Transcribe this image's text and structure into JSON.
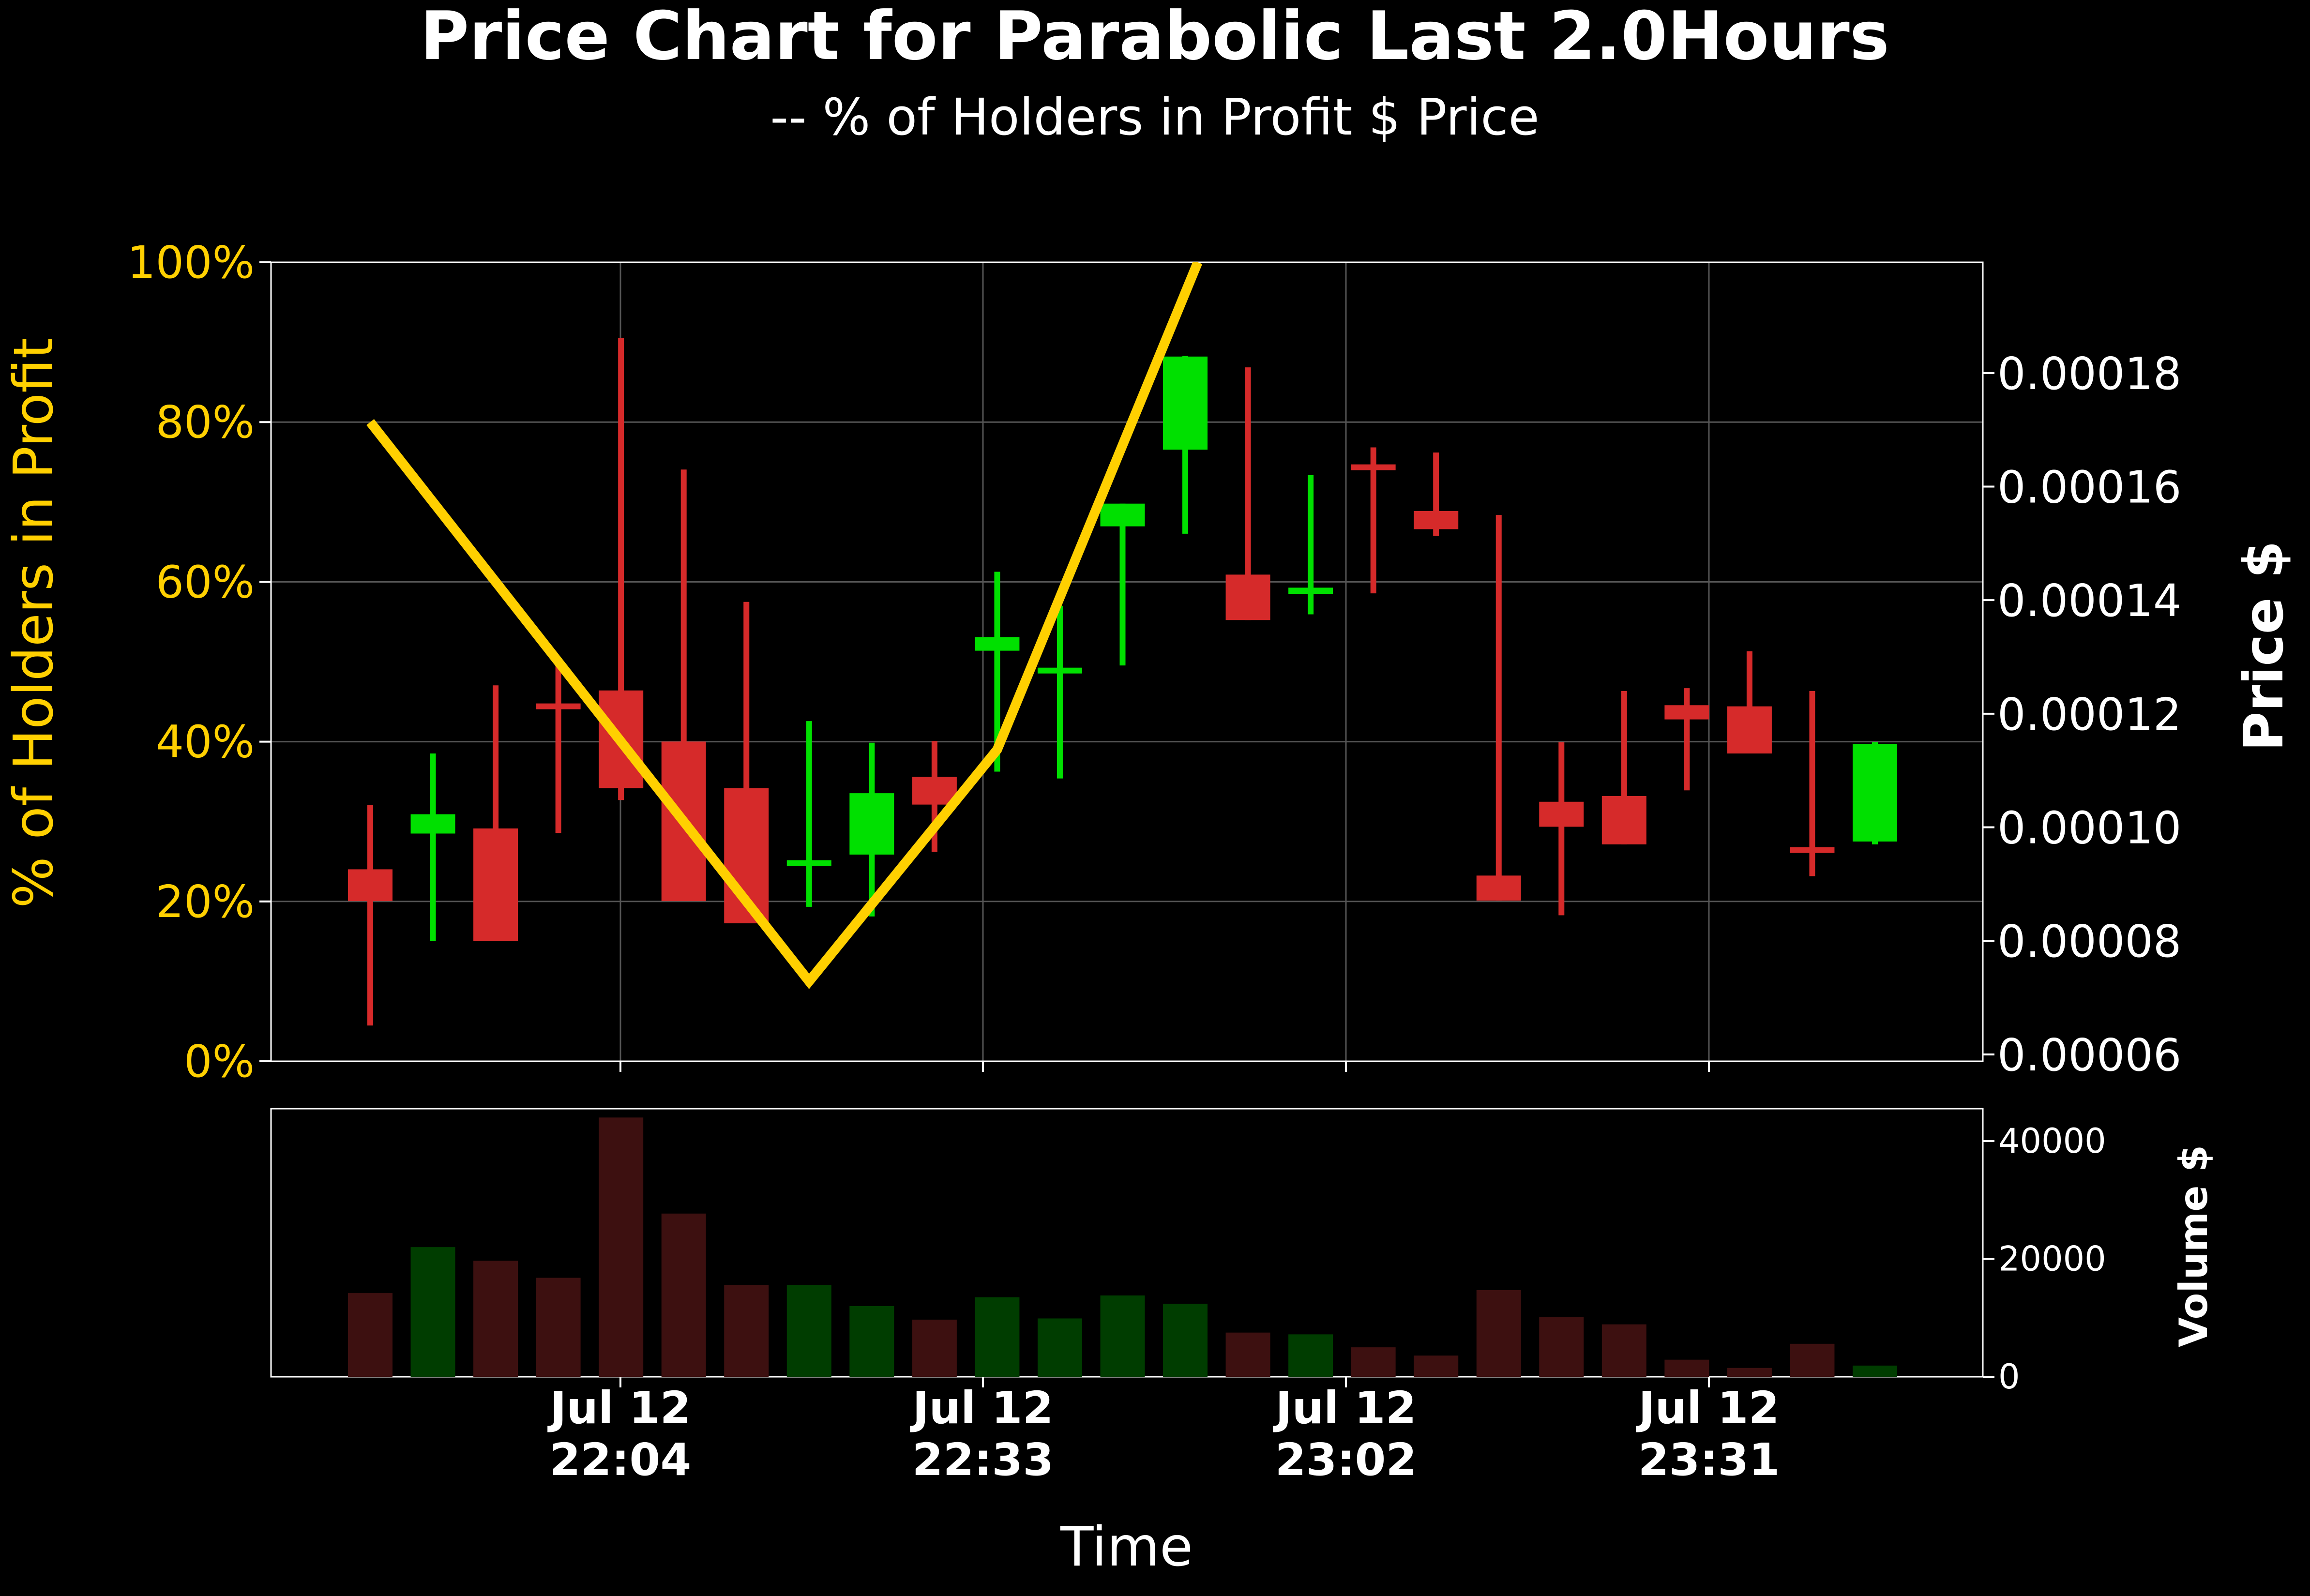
{
  "title": "Price Chart for Parabolic Last 2.0Hours",
  "subtitle": "-- % of Holders in Profit $ Price",
  "colors": {
    "background": "#000000",
    "up": "#00e000",
    "down": "#d62a2a",
    "profit_line": "#ffd000",
    "left_axis_text": "#ffd000",
    "text": "#ffffff",
    "grid": "#555555",
    "vol_up": "#003d00",
    "vol_down": "#3d1010"
  },
  "chart_data": [
    {
      "type": "candlestick",
      "panel": "price",
      "ylabel_left": "% of Holders in Profit",
      "ylabel_right": "Price $",
      "ylim_left": [
        0,
        100
      ],
      "ylim_right": [
        5.88e-05,
        0.0001995
      ],
      "yticks_left": [
        "0%",
        "20%",
        "40%",
        "60%",
        "80%",
        "100%"
      ],
      "yticks_right": [
        "0.00006",
        "0.00008",
        "0.00010",
        "0.00012",
        "0.00014",
        "0.00016",
        "0.00018"
      ],
      "grid": true,
      "candles": [
        {
          "o": 9.26e-05,
          "h": 0.0001039,
          "l": 6.51e-05,
          "c": 8.7e-05
        },
        {
          "o": 9.89e-05,
          "h": 0.000113,
          "l": 8e-05,
          "c": 0.0001023
        },
        {
          "o": 9.98e-05,
          "h": 0.000125,
          "l": 9.71e-05,
          "c": 8e-05
        },
        {
          "o": 0.0001213,
          "h": 0.0001287,
          "l": 9.9e-05,
          "c": 0.0001207
        },
        {
          "o": 0.0001241,
          "h": 0.0001862,
          "l": 0.0001048,
          "c": 0.0001069
        },
        {
          "o": 0.0001151,
          "h": 0.000163,
          "l": 0.0001048,
          "c": 8.7e-05
        },
        {
          "o": 0.0001069,
          "h": 0.0001397,
          "l": 8.41e-05,
          "c": 8.31e-05
        },
        {
          "o": 9.28e-05,
          "h": 0.0001187,
          "l": 8.6e-05,
          "c": 9.37e-05
        },
        {
          "o": 9.52e-05,
          "h": 0.0001149,
          "l": 8.43e-05,
          "c": 0.000106
        },
        {
          "o": 0.0001089,
          "h": 0.0001152,
          "l": 9.57e-05,
          "c": 0.000104
        },
        {
          "o": 0.0001311,
          "h": 0.000145,
          "l": 0.0001098,
          "c": 0.0001335
        },
        {
          "o": 0.0001272,
          "h": 0.000139,
          "l": 0.0001086,
          "c": 0.0001276
        },
        {
          "o": 0.000153,
          "h": 0.000157,
          "l": 0.0001285,
          "c": 0.000157
        },
        {
          "o": 0.0001665,
          "h": 0.000183,
          "l": 0.0001517,
          "c": 0.0001829
        },
        {
          "o": 0.0001445,
          "h": 0.000181,
          "l": 0.0001365,
          "c": 0.0001365
        },
        {
          "o": 0.0001411,
          "h": 0.000162,
          "l": 0.0001375,
          "c": 0.0001422
        },
        {
          "o": 0.0001634,
          "h": 0.0001669,
          "l": 0.0001412,
          "c": 0.0001626
        },
        {
          "o": 0.0001557,
          "h": 0.000166,
          "l": 0.0001513,
          "c": 0.0001525
        },
        {
          "o": 9.15e-05,
          "h": 0.000155,
          "l": 8.71e-05,
          "c": 8.71e-05
        },
        {
          "o": 0.0001045,
          "h": 0.000115,
          "l": 8.45e-05,
          "c": 0.0001001
        },
        {
          "o": 0.0001055,
          "h": 0.000124,
          "l": 9.7e-05,
          "c": 9.7e-05
        },
        {
          "o": 0.0001215,
          "h": 0.0001245,
          "l": 0.0001065,
          "c": 0.000119
        },
        {
          "o": 0.0001213,
          "h": 0.000131,
          "l": 0.000113,
          "c": 0.000113
        },
        {
          "o": 9.6e-05,
          "h": 0.000124,
          "l": 9.14e-05,
          "c": 9.5e-05
        },
        {
          "o": 9.75e-05,
          "h": 0.000115,
          "l": 9.7e-05,
          "c": 0.0001147
        }
      ],
      "profit_line": {
        "x_index": [
          0,
          7,
          10,
          13.2
        ],
        "y_percent": [
          80,
          10,
          39,
          100
        ]
      }
    },
    {
      "type": "bar",
      "panel": "volume",
      "ylabel": "Volume $",
      "ylim": [
        0,
        45500
      ],
      "yticks": [
        "0",
        "20000",
        "40000"
      ],
      "values": [
        14200,
        22000,
        19700,
        16800,
        44000,
        27700,
        15600,
        15600,
        12000,
        9700,
        13500,
        9900,
        13800,
        12400,
        7500,
        7200,
        5000,
        3600,
        14700,
        10100,
        8900,
        2900,
        1500,
        5600,
        1900
      ]
    }
  ],
  "xlabel": "Time",
  "x_tick_labels": [
    {
      "date": "Jul 12",
      "time": "22:04"
    },
    {
      "date": "Jul 12",
      "time": "22:33"
    },
    {
      "date": "Jul 12",
      "time": "23:02"
    },
    {
      "date": "Jul 12",
      "time": "23:31"
    }
  ]
}
